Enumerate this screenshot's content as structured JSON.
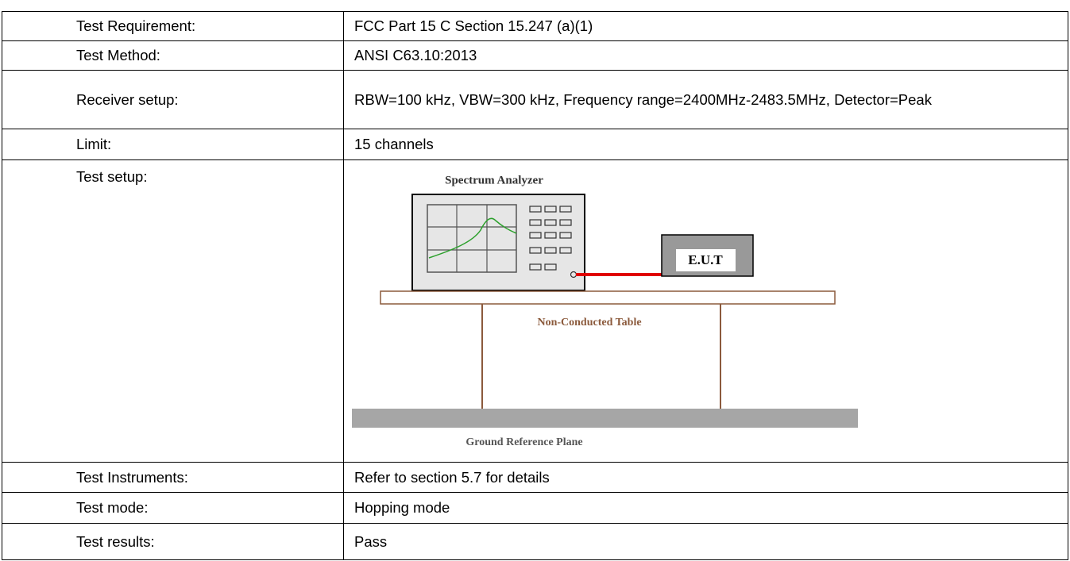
{
  "table": {
    "rows": [
      [
        "Test Requirement:",
        "FCC Part 15 C Section 15.247 (a)(1)"
      ],
      [
        "Test Method:",
        "ANSI C63.10:2013"
      ],
      [
        "Receiver setup:",
        "RBW=100 kHz, VBW=300 kHz, Frequency range=2400MHz-2483.5MHz, Detector=Peak"
      ],
      [
        "Limit:",
        "15 channels"
      ],
      [
        "Test setup:"
      ],
      [
        "Test Instruments:",
        "Refer to section 5.7 for details"
      ],
      [
        "Test mode:",
        "Hopping mode"
      ],
      [
        "Test results:",
        "Pass"
      ]
    ]
  },
  "diagram": {
    "analyzer": "Spectrum Analyzer",
    "eut": "E.U.T",
    "table": "Non-Conducted Table",
    "ground": "Ground Reference Plane"
  }
}
